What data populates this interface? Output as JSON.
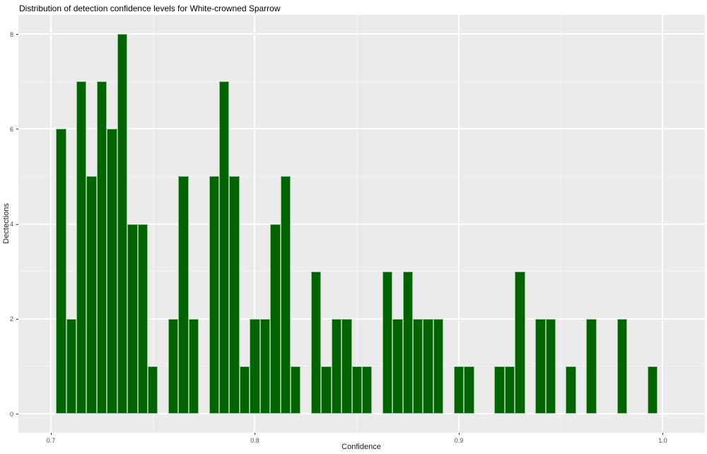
{
  "title": "Distribution of detection confidence levels for White-crowned Sparrow",
  "chart_data": {
    "type": "bar",
    "subtype": "histogram",
    "title": "Distribution of detection confidence levels for White-crowned Sparrow",
    "xlabel": "Confidence",
    "ylabel": "Dectections",
    "bin_width": 0.005,
    "x_ticks": [
      0.7,
      0.8,
      0.9,
      1.0
    ],
    "x_minor_ticks": [
      0.75,
      0.85,
      0.95
    ],
    "y_ticks": [
      0,
      2,
      4,
      6,
      8
    ],
    "y_minor_ticks": [
      1,
      3,
      5,
      7
    ],
    "xlim": [
      0.68406,
      1.02063
    ],
    "ylim": [
      -0.402,
      8.405
    ],
    "grid": "on",
    "legend": "none",
    "panel_bg": "#EBEBEB",
    "grid_color": "#FFFFFF",
    "bar_color": "#006400",
    "bar_border_color": "#8FBF8F",
    "tick_label_color": "#4D4D4D",
    "bars": [
      {
        "x": 0.705,
        "count": 6
      },
      {
        "x": 0.71,
        "count": 2
      },
      {
        "x": 0.715,
        "count": 7
      },
      {
        "x": 0.72,
        "count": 5
      },
      {
        "x": 0.725,
        "count": 7
      },
      {
        "x": 0.73,
        "count": 6
      },
      {
        "x": 0.735,
        "count": 8
      },
      {
        "x": 0.74,
        "count": 4
      },
      {
        "x": 0.745,
        "count": 4
      },
      {
        "x": 0.75,
        "count": 1
      },
      {
        "x": 0.76,
        "count": 2
      },
      {
        "x": 0.765,
        "count": 5
      },
      {
        "x": 0.77,
        "count": 2
      },
      {
        "x": 0.78,
        "count": 5
      },
      {
        "x": 0.785,
        "count": 7
      },
      {
        "x": 0.79,
        "count": 5
      },
      {
        "x": 0.795,
        "count": 1
      },
      {
        "x": 0.8,
        "count": 2
      },
      {
        "x": 0.805,
        "count": 2
      },
      {
        "x": 0.81,
        "count": 4
      },
      {
        "x": 0.815,
        "count": 5
      },
      {
        "x": 0.82,
        "count": 1
      },
      {
        "x": 0.83,
        "count": 3
      },
      {
        "x": 0.835,
        "count": 1
      },
      {
        "x": 0.84,
        "count": 2
      },
      {
        "x": 0.845,
        "count": 2
      },
      {
        "x": 0.85,
        "count": 1
      },
      {
        "x": 0.855,
        "count": 1
      },
      {
        "x": 0.865,
        "count": 3
      },
      {
        "x": 0.87,
        "count": 2
      },
      {
        "x": 0.875,
        "count": 3
      },
      {
        "x": 0.88,
        "count": 2
      },
      {
        "x": 0.885,
        "count": 2
      },
      {
        "x": 0.89,
        "count": 2
      },
      {
        "x": 0.9,
        "count": 1
      },
      {
        "x": 0.905,
        "count": 1
      },
      {
        "x": 0.92,
        "count": 1
      },
      {
        "x": 0.925,
        "count": 1
      },
      {
        "x": 0.93,
        "count": 3
      },
      {
        "x": 0.94,
        "count": 2
      },
      {
        "x": 0.945,
        "count": 2
      },
      {
        "x": 0.955,
        "count": 1
      },
      {
        "x": 0.965,
        "count": 2
      },
      {
        "x": 0.98,
        "count": 2
      },
      {
        "x": 0.995,
        "count": 1
      }
    ]
  }
}
